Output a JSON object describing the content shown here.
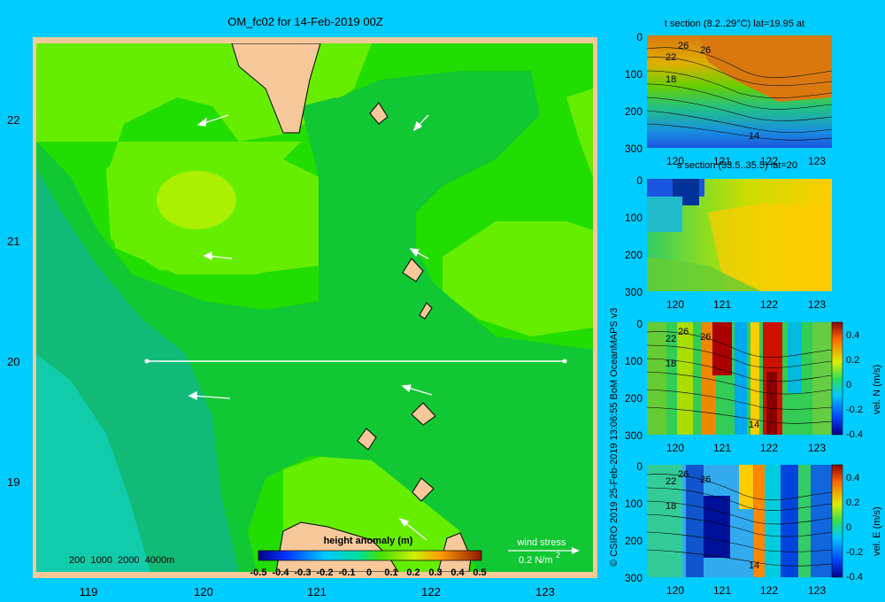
{
  "title": "OM_fc02 for 14-Feb-2019 00Z",
  "credit": "© CSIRO 2019  25-Feb-2019 13:06:55 BoM OceanMAPS v3",
  "colors": {
    "background": "#00ccff",
    "land": "#f6c89a",
    "map_frame": "#f6c89a",
    "arrow": "#ffffff"
  },
  "map": {
    "x_ticks": [
      "119",
      "120",
      "121",
      "122",
      "123"
    ],
    "y_ticks": [
      "22",
      "21",
      "20",
      "19"
    ],
    "depth_labels": "200  1000  2000  4000m",
    "colorbar_title": "height anomaly (m)",
    "colorbar_ticks": [
      "-0.5",
      "-0.4",
      "-0.3",
      "-0.2",
      "-0.1",
      "0",
      "0.1",
      "0.2",
      "0.3",
      "0.4",
      "0.5"
    ],
    "wind_label": "wind stress",
    "wind_scale": "0.2 N/m",
    "wind_exp": "2"
  },
  "panels": [
    {
      "title": "t section (8.2..29°C) lat=19.95 at",
      "x_ticks": [
        "120",
        "121",
        "122",
        "123"
      ],
      "y_ticks": [
        "0",
        "100",
        "200",
        "300"
      ],
      "contour_labels": [
        "26",
        "22",
        "26",
        "18",
        "14"
      ],
      "colorbar": null
    },
    {
      "title": "s section (33.5..35.5) lat=20",
      "x_ticks": [
        "120",
        "121",
        "122",
        "123"
      ],
      "y_ticks": [
        "0",
        "100",
        "200",
        "300"
      ],
      "contour_labels": [],
      "colorbar": null
    },
    {
      "title": "",
      "x_ticks": [
        "120",
        "121",
        "122",
        "123"
      ],
      "y_ticks": [
        "0",
        "100",
        "200",
        "300"
      ],
      "contour_labels": [
        "22",
        "26",
        "26",
        "18",
        "14"
      ],
      "colorbar": {
        "label": "vel. N (m/s)",
        "ticks": [
          "0.4",
          "0.2",
          "0",
          "-0.2",
          "-0.4"
        ]
      }
    },
    {
      "title": "",
      "x_ticks": [
        "120",
        "121",
        "122",
        "123"
      ],
      "y_ticks": [
        "0",
        "100",
        "200",
        "300"
      ],
      "contour_labels": [
        "22",
        "26",
        "26",
        "18",
        "14"
      ],
      "colorbar": {
        "label": "vel. E (m/s)",
        "ticks": [
          "0.4",
          "0.2",
          "0",
          "-0.2",
          "-0.4"
        ]
      }
    }
  ],
  "chart_data": [
    {
      "type": "heatmap",
      "title": "OM_fc02 for 14-Feb-2019 00Z",
      "variable": "height anomaly (m)",
      "xlim": [
        118.5,
        123.5
      ],
      "ylim": [
        18.3,
        22.7
      ],
      "clim": [
        -0.5,
        0.5
      ],
      "section_line": {
        "lat": 20,
        "lon": [
          119.5,
          123.2
        ]
      },
      "notes": "sea surface height anomaly mostly 0.1-0.3 m, lower values in west/southwest"
    },
    {
      "type": "heatmap",
      "title": "t section (8.2..29°C) lat=19.95 at",
      "xlim": [
        119.5,
        123.2
      ],
      "ylim": [
        300,
        0
      ],
      "contours": [
        26,
        22,
        18,
        14
      ]
    },
    {
      "type": "heatmap",
      "title": "s section (33.5..35.5) lat=20",
      "xlim": [
        119.5,
        123.2
      ],
      "ylim": [
        300,
        0
      ]
    },
    {
      "type": "heatmap",
      "colorbar": "vel. N (m/s)",
      "clim": [
        -0.4,
        0.4
      ],
      "xlim": [
        119.5,
        123.2
      ],
      "ylim": [
        300,
        0
      ]
    },
    {
      "type": "heatmap",
      "colorbar": "vel. E (m/s)",
      "clim": [
        -0.4,
        0.4
      ],
      "xlim": [
        119.5,
        123.2
      ],
      "ylim": [
        300,
        0
      ]
    }
  ]
}
